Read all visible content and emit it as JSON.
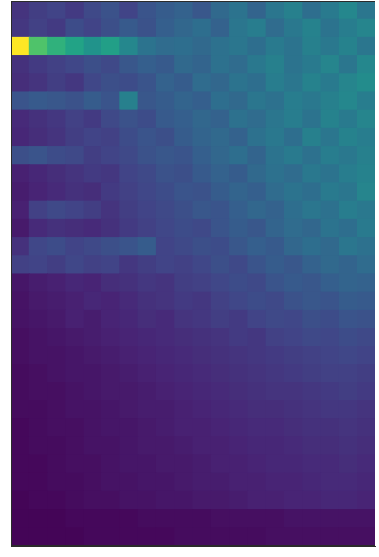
{
  "chart_data": {
    "type": "heatmap",
    "xlim": [
      0,
      20
    ],
    "ylim": [
      0,
      30
    ],
    "tick_labels": false,
    "grid": false,
    "value_range": [
      0,
      10
    ],
    "cells": [
      [
        1.5,
        1.8,
        2.0,
        1.7,
        2.2,
        2.5,
        2.0,
        2.6,
        2.9,
        3.1,
        2.7,
        3.4,
        3.8,
        3.2,
        3.9,
        4.3,
        3.6,
        4.1,
        4.6,
        3.9
      ],
      [
        1.6,
        1.9,
        1.7,
        2.3,
        2.0,
        2.4,
        2.8,
        2.5,
        3.0,
        3.3,
        3.6,
        3.1,
        3.9,
        4.2,
        3.5,
        4.0,
        4.4,
        3.8,
        4.2,
        4.5
      ],
      [
        10,
        7.2,
        6.4,
        5.8,
        5.1,
        5.6,
        4.6,
        3.8,
        3.5,
        3.6,
        3.4,
        3.7,
        3.9,
        3.6,
        4.1,
        3.8,
        4.3,
        4.0,
        4.4,
        3.9
      ],
      [
        1.4,
        1.7,
        1.9,
        2.1,
        2.4,
        2.2,
        2.7,
        3.0,
        2.8,
        3.4,
        3.2,
        3.7,
        3.5,
        4.0,
        4.3,
        3.8,
        4.1,
        4.5,
        3.9,
        4.6
      ],
      [
        1.3,
        1.5,
        1.8,
        1.6,
        2.1,
        2.4,
        2.3,
        2.6,
        3.1,
        2.9,
        3.5,
        3.3,
        3.8,
        3.6,
        4.2,
        3.9,
        4.4,
        4.1,
        4.5,
        4.8
      ],
      [
        2.6,
        2.8,
        2.7,
        2.5,
        2.9,
        2.6,
        4.3,
        2.7,
        2.9,
        3.2,
        3.0,
        3.6,
        3.4,
        3.9,
        3.7,
        4.2,
        4.0,
        4.3,
        4.6,
        4.2
      ],
      [
        1.2,
        1.4,
        1.6,
        1.9,
        1.7,
        2.2,
        2.5,
        2.3,
        2.8,
        3.0,
        3.3,
        3.1,
        3.7,
        3.5,
        3.9,
        4.2,
        3.8,
        4.4,
        4.1,
        4.5
      ],
      [
        1.1,
        1.3,
        1.5,
        1.8,
        2.0,
        1.9,
        2.3,
        2.6,
        2.4,
        2.9,
        3.2,
        3.4,
        3.1,
        3.7,
        4.0,
        3.6,
        4.3,
        3.9,
        4.4,
        4.2
      ],
      [
        2.4,
        2.6,
        2.3,
        2.2,
        1.8,
        2.0,
        2.2,
        2.5,
        2.7,
        2.6,
        3.0,
        3.3,
        3.6,
        3.2,
        3.8,
        4.1,
        3.7,
        4.2,
        4.0,
        4.3
      ],
      [
        0.9,
        1.1,
        1.3,
        1.5,
        1.7,
        1.6,
        2.0,
        2.2,
        2.5,
        2.4,
        2.8,
        3.1,
        2.9,
        3.4,
        3.7,
        3.5,
        4.0,
        3.8,
        4.2,
        4.4
      ],
      [
        0.8,
        1.0,
        1.2,
        1.4,
        1.3,
        1.7,
        1.9,
        2.1,
        2.3,
        2.6,
        2.5,
        2.9,
        3.2,
        3.0,
        3.5,
        3.8,
        3.6,
        4.1,
        3.9,
        4.5
      ],
      [
        0.9,
        1.9,
        2.2,
        2.0,
        1.8,
        1.5,
        1.8,
        2.0,
        2.2,
        2.4,
        2.7,
        2.6,
        3.0,
        3.3,
        3.1,
        3.6,
        3.9,
        3.7,
        4.2,
        4.0
      ],
      [
        0.7,
        1.2,
        1.4,
        1.3,
        1.2,
        1.4,
        1.7,
        1.9,
        2.1,
        2.3,
        2.2,
        2.6,
        2.9,
        2.7,
        3.2,
        3.5,
        3.3,
        3.8,
        3.6,
        4.1
      ],
      [
        1.4,
        2.1,
        2.3,
        2.0,
        2.2,
        2.4,
        2.6,
        2.9,
        2.0,
        2.2,
        2.4,
        2.3,
        2.7,
        3.0,
        2.8,
        3.3,
        3.6,
        3.4,
        3.9,
        3.7
      ],
      [
        1.9,
        2.0,
        1.8,
        2.1,
        1.9,
        2.0,
        1.6,
        1.8,
        2.0,
        1.9,
        2.1,
        2.4,
        2.2,
        2.6,
        2.9,
        2.7,
        3.1,
        3.4,
        3.2,
        3.5
      ],
      [
        0.6,
        0.8,
        0.9,
        1.1,
        1.0,
        1.3,
        1.4,
        1.6,
        1.5,
        1.8,
        1.9,
        2.1,
        2.3,
        2.2,
        2.6,
        2.8,
        2.7,
        3.0,
        3.2,
        3.1
      ],
      [
        0.5,
        0.7,
        0.8,
        0.9,
        1.1,
        1.0,
        1.2,
        1.4,
        1.5,
        1.7,
        1.6,
        1.9,
        2.1,
        2.3,
        2.2,
        2.5,
        2.7,
        2.6,
        2.9,
        2.8
      ],
      [
        0.5,
        0.6,
        0.7,
        0.9,
        0.8,
        1.0,
        1.1,
        1.3,
        1.2,
        1.5,
        1.6,
        1.8,
        1.7,
        2.0,
        2.2,
        2.1,
        2.4,
        2.3,
        2.6,
        2.5
      ],
      [
        0.4,
        0.5,
        0.6,
        0.7,
        0.8,
        0.9,
        1.0,
        1.1,
        1.2,
        1.3,
        1.4,
        1.5,
        1.7,
        1.6,
        1.9,
        2.0,
        2.2,
        2.1,
        2.3,
        2.2
      ],
      [
        0.4,
        0.5,
        0.5,
        0.6,
        0.7,
        0.8,
        0.9,
        1.0,
        1.1,
        1.2,
        1.3,
        1.4,
        1.5,
        1.6,
        1.7,
        1.8,
        1.9,
        2.0,
        2.1,
        2.0
      ],
      [
        0.3,
        0.4,
        0.5,
        0.6,
        0.6,
        0.7,
        0.8,
        0.9,
        1.0,
        1.1,
        1.2,
        1.3,
        1.4,
        1.5,
        1.6,
        1.7,
        1.8,
        1.9,
        1.9,
        1.8
      ],
      [
        0.3,
        0.4,
        0.4,
        0.5,
        0.6,
        0.7,
        0.7,
        0.8,
        0.9,
        1.0,
        1.1,
        1.2,
        1.3,
        1.4,
        1.5,
        1.5,
        1.6,
        1.7,
        1.8,
        1.7
      ],
      [
        0.3,
        0.3,
        0.4,
        0.5,
        0.5,
        0.6,
        0.7,
        0.8,
        0.8,
        0.9,
        1.0,
        1.1,
        1.2,
        1.3,
        1.3,
        1.4,
        1.5,
        1.6,
        1.6,
        1.5
      ],
      [
        0.2,
        0.3,
        0.4,
        0.4,
        0.5,
        0.6,
        0.6,
        0.7,
        0.8,
        0.9,
        0.9,
        1.0,
        1.1,
        1.2,
        1.2,
        1.3,
        1.4,
        1.4,
        1.5,
        1.4
      ],
      [
        0.2,
        0.3,
        0.3,
        0.4,
        0.5,
        0.5,
        0.6,
        0.7,
        0.7,
        0.8,
        0.9,
        0.9,
        1.0,
        1.1,
        1.1,
        1.2,
        1.3,
        1.3,
        1.4,
        1.3
      ],
      [
        0.2,
        0.2,
        0.3,
        0.4,
        0.4,
        0.5,
        0.6,
        0.6,
        0.7,
        0.7,
        0.8,
        0.9,
        0.9,
        1.0,
        1.1,
        1.1,
        1.2,
        1.2,
        1.3,
        1.2
      ],
      [
        0.2,
        0.2,
        0.3,
        0.3,
        0.4,
        0.5,
        0.5,
        0.6,
        0.6,
        0.7,
        0.8,
        0.8,
        0.9,
        0.9,
        1.0,
        1.0,
        1.1,
        1.2,
        1.2,
        1.1
      ],
      [
        0.1,
        0.2,
        0.2,
        0.3,
        0.4,
        0.4,
        0.5,
        0.5,
        0.6,
        0.6,
        0.7,
        0.7,
        0.8,
        0.9,
        0.9,
        1.0,
        1.0,
        1.1,
        1.1,
        1.0
      ],
      [
        0.1,
        0.1,
        0.1,
        0.2,
        0.2,
        0.2,
        0.2,
        0.3,
        0.3,
        0.3,
        0.3,
        0.4,
        0.4,
        0.4,
        0.4,
        0.5,
        0.5,
        0.5,
        0.5,
        0.5
      ],
      [
        0.1,
        0.1,
        0.1,
        0.1,
        0.2,
        0.2,
        0.2,
        0.2,
        0.2,
        0.3,
        0.3,
        0.3,
        0.3,
        0.3,
        0.4,
        0.4,
        0.4,
        0.4,
        0.4,
        0.4
      ]
    ]
  }
}
